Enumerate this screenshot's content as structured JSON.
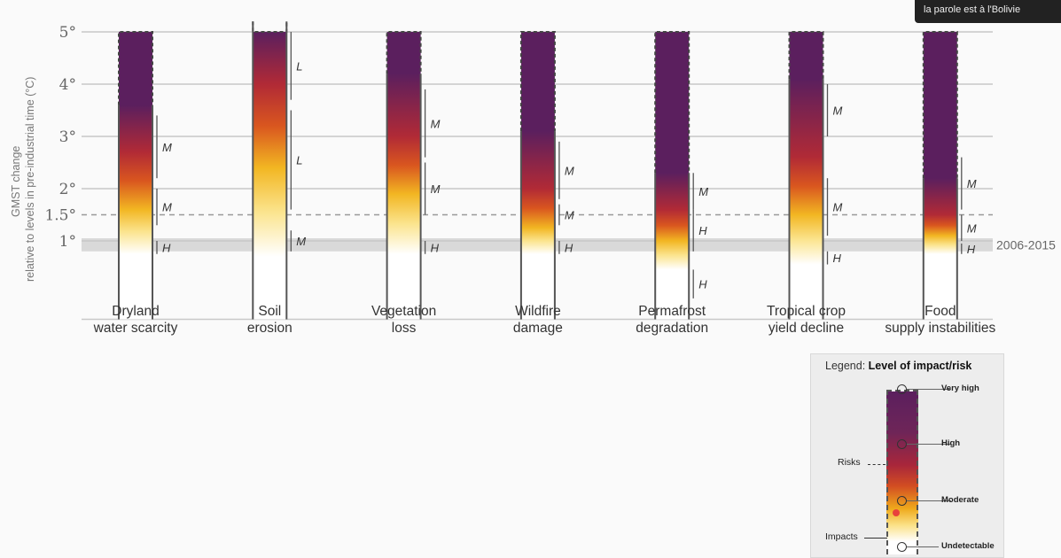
{
  "chart_data": {
    "type": "bar",
    "ylabel_line1": "GMST change",
    "ylabel_line2": "relative to levels in pre-industrial time (°C)",
    "y_ticks": [
      {
        "value": 1,
        "label": "1°"
      },
      {
        "value": 1.5,
        "label": "1.5°"
      },
      {
        "value": 2,
        "label": "2°"
      },
      {
        "value": 3,
        "label": "3°"
      },
      {
        "value": 4,
        "label": "4°"
      },
      {
        "value": 5,
        "label": "5°"
      }
    ],
    "ylim": [
      -0.5,
      5
    ],
    "reference_band": {
      "label": "2006-2015",
      "from": 0.8,
      "to": 1.05
    },
    "dashed_line_value": 1.5,
    "categories": [
      {
        "label1": "Dryland",
        "label2": "water scarcity",
        "levels": {
          "undetectable": 0.75,
          "moderate": 1.6,
          "high": 2.7,
          "very_high": 3.6
        },
        "confidence": [
          {
            "from": 0.75,
            "to": 1.0,
            "label": "H"
          },
          {
            "from": 1.3,
            "to": 2.0,
            "label": "M"
          },
          {
            "from": 2.2,
            "to": 3.4,
            "label": "M"
          }
        ]
      },
      {
        "label1": "Soil",
        "label2": "erosion",
        "levels": {
          "undetectable": 0.7,
          "moderate": 2.4,
          "high": 4.0,
          "very_high": 5.2
        },
        "confidence": [
          {
            "from": 0.8,
            "to": 1.2,
            "label": "M"
          },
          {
            "from": 1.6,
            "to": 3.5,
            "label": "L"
          },
          {
            "from": 3.7,
            "to": 5.0,
            "label": "L"
          }
        ]
      },
      {
        "label1": "Vegetation",
        "label2": "loss",
        "levels": {
          "undetectable": 0.75,
          "moderate": 1.9,
          "high": 3.0,
          "very_high": 4.2
        },
        "confidence": [
          {
            "from": 0.75,
            "to": 1.0,
            "label": "H"
          },
          {
            "from": 1.5,
            "to": 2.5,
            "label": "M"
          },
          {
            "from": 2.6,
            "to": 3.9,
            "label": "M"
          }
        ]
      },
      {
        "label1": "Wildfire",
        "label2": "damage",
        "levels": {
          "undetectable": 0.75,
          "moderate": 1.25,
          "high": 2.0,
          "very_high": 3.1
        },
        "confidence": [
          {
            "from": 0.75,
            "to": 1.0,
            "label": "H"
          },
          {
            "from": 1.3,
            "to": 1.7,
            "label": "M"
          },
          {
            "from": 1.8,
            "to": 2.9,
            "label": "M"
          }
        ]
      },
      {
        "label1": "Permafrost",
        "label2": "degradation",
        "levels": {
          "undetectable": 0.45,
          "moderate": 1.0,
          "high": 1.6,
          "very_high": 2.3
        },
        "confidence": [
          {
            "from": -0.1,
            "to": 0.45,
            "label": "H"
          },
          {
            "from": 0.8,
            "to": 1.6,
            "label": "H"
          },
          {
            "from": 1.6,
            "to": 2.3,
            "label": "M"
          }
        ]
      },
      {
        "label1": "Tropical crop",
        "label2": "yield decline",
        "levels": {
          "undetectable": 0.55,
          "moderate": 1.5,
          "high": 2.6,
          "very_high": 4.1
        },
        "confidence": [
          {
            "from": 0.55,
            "to": 0.8,
            "label": "H"
          },
          {
            "from": 1.1,
            "to": 2.2,
            "label": "M"
          },
          {
            "from": 3.0,
            "to": 4.0,
            "label": "M"
          }
        ]
      },
      {
        "label1": "Food",
        "label2": "supply instabilities",
        "levels": {
          "undetectable": 0.75,
          "moderate": 1.1,
          "high": 1.5,
          "very_high": 2.2
        },
        "confidence": [
          {
            "from": 0.75,
            "to": 0.95,
            "label": "H"
          },
          {
            "from": 1.0,
            "to": 1.5,
            "label": "M"
          },
          {
            "from": 1.6,
            "to": 2.6,
            "label": "M"
          }
        ]
      }
    ]
  },
  "legend": {
    "title_prefix": "Legend:",
    "title_bold": "Level of impact/risk",
    "levels": [
      "Very high",
      "High",
      "Moderate",
      "Undetectable"
    ],
    "risks_label": "Risks",
    "impacts_label": "Impacts"
  },
  "tooltip": {
    "text": "la parole est à l'Bolivie"
  },
  "colors": {
    "very_high": "#5b1f5e",
    "high": "#b12a36",
    "moderate": "#f2b622",
    "light": "#fbe48e",
    "undetectable": "#ffffff",
    "band": "#d9d9d9",
    "grid": "#c8c8c8"
  }
}
